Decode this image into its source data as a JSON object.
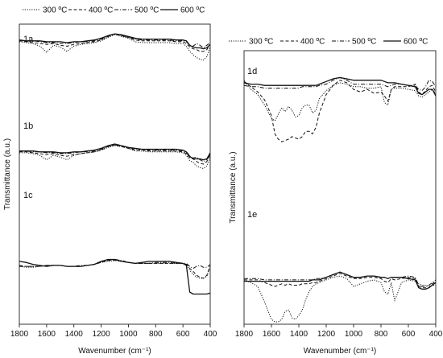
{
  "chart_data": [
    {
      "type": "line",
      "panel_labels": [
        "1a",
        "1b",
        "1c"
      ],
      "legend": [
        {
          "name": "300 ºC",
          "dash": "dotted"
        },
        {
          "name": "400 ºC",
          "dash": "dashed"
        },
        {
          "name": "500 ºC",
          "dash": "dashdot"
        },
        {
          "name": "600 ºC",
          "dash": "solid"
        }
      ],
      "xlabel": "Wavenumber (cm⁻¹)",
      "ylabel": "Transmittance (a.u.)",
      "xlim": [
        1800,
        400
      ],
      "xticks": [
        1800,
        1600,
        1400,
        1200,
        1000,
        800,
        600,
        400
      ],
      "xtick_labels": [
        "1800",
        "1600",
        "1400",
        "1200",
        "1000",
        "800",
        "600",
        "400"
      ],
      "ylim": [
        0,
        100
      ],
      "grid": false,
      "legend_position": "top",
      "x": [
        1800,
        1750,
        1700,
        1650,
        1600,
        1550,
        1500,
        1450,
        1400,
        1350,
        1300,
        1250,
        1200,
        1150,
        1100,
        1050,
        1000,
        950,
        900,
        850,
        800,
        750,
        700,
        650,
        600,
        575,
        550,
        525,
        500,
        475,
        450,
        425,
        400
      ],
      "series": [
        {
          "panel": "1a",
          "name": "300 ºC",
          "values": [
            90,
            89,
            88,
            85,
            78,
            86,
            84,
            79,
            85,
            87,
            88,
            89,
            91,
            95,
            98,
            96,
            94,
            90,
            89,
            89,
            89,
            89,
            89,
            88,
            88,
            85,
            79,
            75,
            72,
            70,
            69,
            73,
            84
          ]
        },
        {
          "panel": "1a",
          "name": "400 ºC",
          "values": [
            91,
            90,
            89,
            88,
            87,
            88,
            86,
            85,
            87,
            88,
            89,
            90,
            92,
            96,
            99,
            97,
            95,
            92,
            91,
            91,
            91,
            91,
            91,
            90,
            90,
            88,
            84,
            82,
            81,
            79,
            79,
            81,
            87
          ]
        },
        {
          "panel": "1a",
          "name": "500 ºC",
          "values": [
            92,
            91,
            91,
            90,
            89,
            89,
            88,
            88,
            89,
            90,
            90,
            91,
            93,
            96,
            99,
            97,
            95,
            93,
            92,
            92,
            92,
            92,
            92,
            91,
            91,
            90,
            86,
            85,
            88,
            86,
            83,
            86,
            89
          ]
        },
        {
          "panel": "1a",
          "name": "600 ºC",
          "values": [
            92,
            91,
            91,
            91,
            90,
            90,
            90,
            89,
            90,
            90,
            91,
            92,
            94,
            97,
            99,
            98,
            96,
            94,
            93,
            93,
            93,
            93,
            93,
            92,
            92,
            91,
            86,
            84,
            83,
            83,
            82,
            83,
            87
          ]
        },
        {
          "panel": "1b",
          "name": "300 ºC",
          "values": [
            57,
            57,
            56,
            54,
            49,
            54,
            52,
            49,
            54,
            56,
            57,
            58,
            60,
            63,
            65,
            64,
            62,
            59,
            59,
            58,
            58,
            58,
            58,
            58,
            57,
            54,
            48,
            46,
            42,
            40,
            39,
            42,
            52
          ]
        },
        {
          "panel": "1b",
          "name": "400 ºC",
          "values": [
            58,
            58,
            57,
            56,
            55,
            56,
            54,
            53,
            55,
            56,
            57,
            58,
            60,
            64,
            66,
            64,
            62,
            60,
            60,
            59,
            59,
            59,
            59,
            59,
            58,
            56,
            51,
            50,
            47,
            45,
            44,
            47,
            55
          ]
        },
        {
          "panel": "1b",
          "name": "500 ºC",
          "values": [
            59,
            59,
            58,
            58,
            57,
            57,
            56,
            56,
            57,
            58,
            58,
            59,
            61,
            64,
            66,
            65,
            63,
            61,
            61,
            60,
            60,
            60,
            60,
            60,
            59,
            57,
            52,
            51,
            52,
            49,
            47,
            49,
            56
          ]
        },
        {
          "panel": "1b",
          "name": "600 ºC",
          "values": [
            59,
            59,
            59,
            58,
            58,
            58,
            57,
            57,
            58,
            58,
            59,
            60,
            62,
            65,
            67,
            65,
            63,
            62,
            61,
            61,
            61,
            61,
            61,
            61,
            60,
            58,
            53,
            50,
            50,
            50,
            49,
            50,
            57
          ]
        },
        {
          "panel": "1c",
          "name": "300 ºC",
          "values": [
            30,
            29,
            29,
            30,
            31,
            31,
            31,
            30,
            30,
            30,
            31,
            32,
            34,
            35,
            36,
            35,
            34,
            33,
            33,
            33,
            33,
            33,
            33,
            33,
            33,
            32,
            26,
            22,
            19,
            18,
            18,
            20,
            30
          ]
        },
        {
          "panel": "1c",
          "name": "400 ºC",
          "values": [
            31,
            30,
            30,
            30,
            31,
            31,
            31,
            30,
            30,
            30,
            31,
            32,
            34,
            36,
            36,
            35,
            34,
            33,
            33,
            33,
            33,
            33,
            33,
            33,
            33,
            32,
            28,
            25,
            21,
            19,
            18,
            21,
            31
          ]
        },
        {
          "panel": "1c",
          "name": "500 ºC",
          "values": [
            30,
            30,
            30,
            30,
            31,
            31,
            31,
            30,
            30,
            31,
            31,
            32,
            35,
            36,
            37,
            36,
            34,
            33,
            33,
            33,
            34,
            34,
            34,
            33,
            33,
            33,
            30,
            28,
            30,
            31,
            29,
            29,
            32
          ]
        },
        {
          "panel": "1c",
          "name": "600 ºC",
          "values": [
            35,
            34,
            32,
            31,
            30,
            31,
            31,
            30,
            30,
            30,
            31,
            32,
            35,
            37,
            37,
            35,
            34,
            33,
            34,
            35,
            35,
            35,
            35,
            34,
            33,
            31,
            4,
            2,
            2,
            2,
            2,
            2,
            3
          ]
        }
      ]
    },
    {
      "type": "line",
      "panel_labels": [
        "1d",
        "1e"
      ],
      "legend": [
        {
          "name": "300 ºC",
          "dash": "dotted"
        },
        {
          "name": "400 ºC",
          "dash": "dashed"
        },
        {
          "name": "500 ºC",
          "dash": "dashdot"
        },
        {
          "name": "600 ºC",
          "dash": "solid"
        }
      ],
      "xlabel": "Wavenumber (cm⁻¹)",
      "ylabel": "Transmittance (a.u.)",
      "xlim": [
        1800,
        400
      ],
      "xticks": [
        1800,
        1600,
        1400,
        1200,
        1000,
        800,
        600,
        400
      ],
      "xtick_labels": [
        "1800",
        "1600",
        "1400",
        "1200",
        "1000",
        "800",
        "600",
        "400"
      ],
      "ylim": [
        0,
        100
      ],
      "grid": false,
      "legend_position": "top",
      "x": [
        1800,
        1750,
        1700,
        1650,
        1600,
        1575,
        1550,
        1525,
        1500,
        1475,
        1450,
        1425,
        1400,
        1375,
        1350,
        1325,
        1300,
        1275,
        1250,
        1200,
        1150,
        1100,
        1050,
        1000,
        950,
        900,
        850,
        800,
        775,
        750,
        725,
        700,
        650,
        600,
        550,
        525,
        500,
        475,
        450,
        425,
        400
      ],
      "series": [
        {
          "panel": "1d",
          "name": "300 ºC",
          "values": [
            91,
            84,
            80,
            72,
            62,
            60,
            65,
            70,
            67,
            71,
            68,
            63,
            64,
            70,
            72,
            72,
            66,
            68,
            77,
            83,
            87,
            89,
            88,
            86,
            86,
            85,
            85,
            86,
            74,
            72,
            84,
            85,
            85,
            84,
            83,
            79,
            78,
            80,
            82,
            84,
            81
          ]
        },
        {
          "panel": "1d",
          "name": "400 ºC",
          "values": [
            90,
            86,
            82,
            76,
            64,
            50,
            46,
            44,
            45,
            46,
            48,
            47,
            46,
            48,
            52,
            52,
            50,
            55,
            66,
            80,
            87,
            91,
            89,
            84,
            82,
            84,
            81,
            82,
            79,
            75,
            84,
            86,
            86,
            86,
            88,
            82,
            80,
            83,
            86,
            87,
            82
          ]
        },
        {
          "panel": "1d",
          "name": "500 ºC",
          "values": [
            87,
            86,
            86,
            85,
            85,
            85,
            85,
            85,
            85,
            85,
            85,
            85,
            85,
            86,
            86,
            86,
            86,
            86,
            87,
            88,
            91,
            93,
            91,
            88,
            88,
            88,
            88,
            88,
            87,
            86,
            87,
            88,
            88,
            87,
            87,
            84,
            83,
            86,
            91,
            90,
            86
          ]
        },
        {
          "panel": "1d",
          "name": "600 ºC",
          "values": [
            89,
            88,
            88,
            87,
            87,
            87,
            87,
            87,
            87,
            87,
            87,
            87,
            87,
            87,
            87,
            87,
            87,
            87,
            88,
            90,
            92,
            93,
            92,
            91,
            91,
            91,
            91,
            91,
            90,
            89,
            89,
            89,
            88,
            87,
            86,
            81,
            80,
            82,
            84,
            84,
            79
          ]
        },
        {
          "panel": "1e",
          "name": "300 ºC",
          "values": [
            35,
            33,
            30,
            18,
            5,
            3,
            3,
            5,
            11,
            12,
            6,
            5,
            8,
            12,
            20,
            26,
            30,
            32,
            33,
            35,
            37,
            38,
            36,
            30,
            32,
            34,
            35,
            33,
            26,
            24,
            33,
            19,
            33,
            35,
            34,
            32,
            31,
            31,
            30,
            31,
            31
          ]
        },
        {
          "panel": "1e",
          "name": "400 ºC",
          "values": [
            35,
            35,
            35,
            33,
            31,
            30,
            31,
            32,
            31,
            32,
            31,
            31,
            31,
            32,
            32,
            32,
            33,
            33,
            34,
            36,
            38,
            40,
            38,
            36,
            36,
            37,
            37,
            36,
            34,
            33,
            36,
            35,
            36,
            37,
            36,
            30,
            29,
            29,
            29,
            32,
            34
          ]
        },
        {
          "panel": "1e",
          "name": "500 ºC",
          "values": [
            36,
            36,
            36,
            35,
            35,
            35,
            35,
            35,
            35,
            35,
            35,
            35,
            35,
            35,
            35,
            35,
            35,
            36,
            36,
            37,
            39,
            41,
            39,
            37,
            37,
            38,
            38,
            37,
            37,
            36,
            37,
            37,
            37,
            38,
            37,
            31,
            30,
            30,
            31,
            33,
            35
          ]
        },
        {
          "panel": "1e",
          "name": "600 ºC",
          "values": [
            34,
            34,
            34,
            34,
            34,
            34,
            34,
            34,
            34,
            34,
            34,
            34,
            34,
            34,
            34,
            34,
            35,
            35,
            35,
            37,
            39,
            41,
            39,
            37,
            37,
            38,
            38,
            37,
            37,
            36,
            37,
            37,
            37,
            36,
            35,
            29,
            28,
            28,
            29,
            31,
            33
          ]
        }
      ]
    }
  ]
}
